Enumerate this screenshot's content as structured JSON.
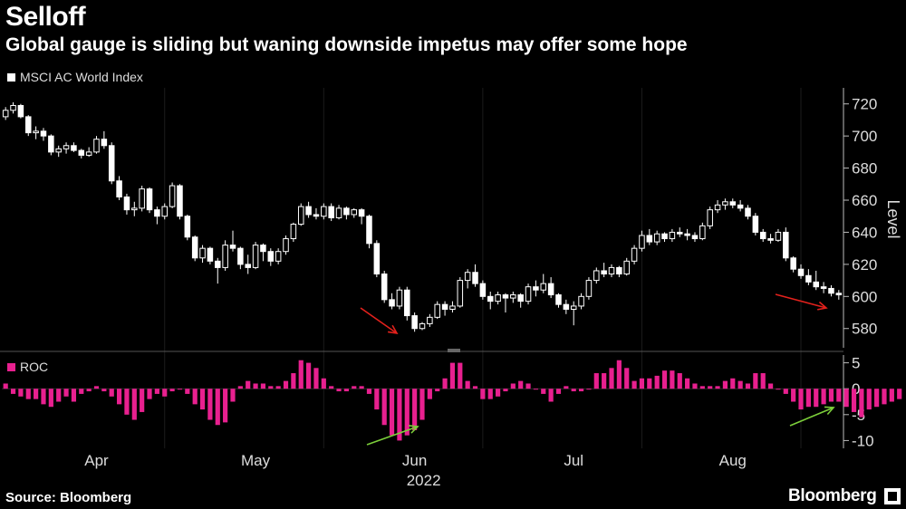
{
  "title": "Selloff",
  "subtitle": "Global gauge is sliding but waning downside impetus may offer some hope",
  "source": "Source: Bloomberg",
  "brand": "Bloomberg",
  "colors": {
    "up": "#ffffff",
    "down": "#ffffff",
    "roc": "#e8208f",
    "arrow_red": "#e3211c",
    "arrow_green": "#7ccf3a",
    "grid": "#333333"
  },
  "chart_data": [
    {
      "type": "candlestick",
      "legend": "MSCI AC World Index",
      "ylabel": "Level",
      "ylim": [
        568,
        730
      ],
      "yticks": [
        580,
        600,
        620,
        640,
        660,
        680,
        700,
        720
      ],
      "x_month_labels": [
        "Apr",
        "May",
        "Jun",
        "Jul",
        "Aug"
      ],
      "x_month_indices": [
        12,
        33,
        54,
        75,
        96
      ],
      "x_year_label": "2022",
      "candles": [
        {
          "o": 712,
          "h": 718,
          "l": 710,
          "c": 716
        },
        {
          "o": 716,
          "h": 721,
          "l": 714,
          "c": 719
        },
        {
          "o": 719,
          "h": 720,
          "l": 711,
          "c": 712
        },
        {
          "o": 712,
          "h": 713,
          "l": 700,
          "c": 702
        },
        {
          "o": 702,
          "h": 706,
          "l": 698,
          "c": 703
        },
        {
          "o": 703,
          "h": 705,
          "l": 697,
          "c": 700
        },
        {
          "o": 700,
          "h": 701,
          "l": 688,
          "c": 690
        },
        {
          "o": 690,
          "h": 694,
          "l": 687,
          "c": 692
        },
        {
          "o": 692,
          "h": 696,
          "l": 689,
          "c": 694
        },
        {
          "o": 694,
          "h": 696,
          "l": 690,
          "c": 691
        },
        {
          "o": 691,
          "h": 692,
          "l": 686,
          "c": 688
        },
        {
          "o": 688,
          "h": 693,
          "l": 687,
          "c": 690
        },
        {
          "o": 690,
          "h": 700,
          "l": 689,
          "c": 698
        },
        {
          "o": 698,
          "h": 703,
          "l": 692,
          "c": 694
        },
        {
          "o": 694,
          "h": 696,
          "l": 670,
          "c": 672
        },
        {
          "o": 672,
          "h": 675,
          "l": 660,
          "c": 662
        },
        {
          "o": 662,
          "h": 664,
          "l": 651,
          "c": 654
        },
        {
          "o": 654,
          "h": 659,
          "l": 650,
          "c": 655
        },
        {
          "o": 655,
          "h": 669,
          "l": 653,
          "c": 667
        },
        {
          "o": 667,
          "h": 668,
          "l": 652,
          "c": 654
        },
        {
          "o": 654,
          "h": 656,
          "l": 645,
          "c": 650
        },
        {
          "o": 650,
          "h": 658,
          "l": 648,
          "c": 656
        },
        {
          "o": 656,
          "h": 671,
          "l": 655,
          "c": 669
        },
        {
          "o": 669,
          "h": 670,
          "l": 648,
          "c": 650
        },
        {
          "o": 650,
          "h": 651,
          "l": 635,
          "c": 637
        },
        {
          "o": 637,
          "h": 638,
          "l": 622,
          "c": 624
        },
        {
          "o": 624,
          "h": 632,
          "l": 621,
          "c": 630
        },
        {
          "o": 630,
          "h": 631,
          "l": 620,
          "c": 622
        },
        {
          "o": 622,
          "h": 624,
          "l": 608,
          "c": 618
        },
        {
          "o": 618,
          "h": 635,
          "l": 616,
          "c": 632
        },
        {
          "o": 632,
          "h": 641,
          "l": 628,
          "c": 630
        },
        {
          "o": 630,
          "h": 631,
          "l": 617,
          "c": 620
        },
        {
          "o": 620,
          "h": 626,
          "l": 614,
          "c": 618
        },
        {
          "o": 618,
          "h": 634,
          "l": 617,
          "c": 632
        },
        {
          "o": 632,
          "h": 633,
          "l": 622,
          "c": 628
        },
        {
          "o": 628,
          "h": 630,
          "l": 619,
          "c": 622
        },
        {
          "o": 622,
          "h": 630,
          "l": 620,
          "c": 628
        },
        {
          "o": 628,
          "h": 638,
          "l": 626,
          "c": 636
        },
        {
          "o": 636,
          "h": 646,
          "l": 634,
          "c": 645
        },
        {
          "o": 645,
          "h": 658,
          "l": 644,
          "c": 656
        },
        {
          "o": 656,
          "h": 659,
          "l": 649,
          "c": 651
        },
        {
          "o": 651,
          "h": 655,
          "l": 648,
          "c": 650
        },
        {
          "o": 650,
          "h": 658,
          "l": 648,
          "c": 656
        },
        {
          "o": 656,
          "h": 658,
          "l": 647,
          "c": 649
        },
        {
          "o": 649,
          "h": 657,
          "l": 648,
          "c": 655
        },
        {
          "o": 655,
          "h": 656,
          "l": 648,
          "c": 651
        },
        {
          "o": 651,
          "h": 655,
          "l": 649,
          "c": 654
        },
        {
          "o": 654,
          "h": 655,
          "l": 645,
          "c": 650
        },
        {
          "o": 650,
          "h": 651,
          "l": 630,
          "c": 633
        },
        {
          "o": 633,
          "h": 635,
          "l": 612,
          "c": 614
        },
        {
          "o": 614,
          "h": 616,
          "l": 596,
          "c": 598
        },
        {
          "o": 598,
          "h": 602,
          "l": 592,
          "c": 594
        },
        {
          "o": 594,
          "h": 606,
          "l": 592,
          "c": 604
        },
        {
          "o": 604,
          "h": 606,
          "l": 585,
          "c": 588
        },
        {
          "o": 588,
          "h": 590,
          "l": 578,
          "c": 580
        },
        {
          "o": 580,
          "h": 584,
          "l": 579,
          "c": 583
        },
        {
          "o": 583,
          "h": 589,
          "l": 581,
          "c": 587
        },
        {
          "o": 587,
          "h": 597,
          "l": 586,
          "c": 595
        },
        {
          "o": 595,
          "h": 597,
          "l": 588,
          "c": 592
        },
        {
          "o": 592,
          "h": 597,
          "l": 590,
          "c": 594
        },
        {
          "o": 594,
          "h": 612,
          "l": 593,
          "c": 610
        },
        {
          "o": 610,
          "h": 617,
          "l": 605,
          "c": 615
        },
        {
          "o": 615,
          "h": 620,
          "l": 606,
          "c": 608
        },
        {
          "o": 608,
          "h": 610,
          "l": 598,
          "c": 600
        },
        {
          "o": 600,
          "h": 603,
          "l": 592,
          "c": 597
        },
        {
          "o": 597,
          "h": 603,
          "l": 595,
          "c": 601
        },
        {
          "o": 601,
          "h": 602,
          "l": 590,
          "c": 599
        },
        {
          "o": 599,
          "h": 603,
          "l": 596,
          "c": 601
        },
        {
          "o": 601,
          "h": 602,
          "l": 593,
          "c": 597
        },
        {
          "o": 597,
          "h": 608,
          "l": 595,
          "c": 606
        },
        {
          "o": 606,
          "h": 610,
          "l": 600,
          "c": 604
        },
        {
          "o": 604,
          "h": 614,
          "l": 602,
          "c": 608
        },
        {
          "o": 608,
          "h": 612,
          "l": 599,
          "c": 601
        },
        {
          "o": 601,
          "h": 602,
          "l": 593,
          "c": 595
        },
        {
          "o": 595,
          "h": 598,
          "l": 589,
          "c": 592
        },
        {
          "o": 592,
          "h": 597,
          "l": 582,
          "c": 594
        },
        {
          "o": 594,
          "h": 602,
          "l": 592,
          "c": 600
        },
        {
          "o": 600,
          "h": 612,
          "l": 598,
          "c": 610
        },
        {
          "o": 610,
          "h": 618,
          "l": 608,
          "c": 616
        },
        {
          "o": 616,
          "h": 621,
          "l": 612,
          "c": 614
        },
        {
          "o": 614,
          "h": 620,
          "l": 612,
          "c": 618
        },
        {
          "o": 618,
          "h": 619,
          "l": 612,
          "c": 614
        },
        {
          "o": 614,
          "h": 624,
          "l": 613,
          "c": 622
        },
        {
          "o": 622,
          "h": 632,
          "l": 620,
          "c": 630
        },
        {
          "o": 630,
          "h": 641,
          "l": 628,
          "c": 638
        },
        {
          "o": 638,
          "h": 642,
          "l": 632,
          "c": 634
        },
        {
          "o": 634,
          "h": 641,
          "l": 632,
          "c": 639
        },
        {
          "o": 639,
          "h": 640,
          "l": 634,
          "c": 636
        },
        {
          "o": 636,
          "h": 642,
          "l": 634,
          "c": 640
        },
        {
          "o": 640,
          "h": 643,
          "l": 637,
          "c": 639
        },
        {
          "o": 639,
          "h": 642,
          "l": 635,
          "c": 638
        },
        {
          "o": 638,
          "h": 640,
          "l": 634,
          "c": 636
        },
        {
          "o": 636,
          "h": 646,
          "l": 635,
          "c": 644
        },
        {
          "o": 644,
          "h": 656,
          "l": 642,
          "c": 654
        },
        {
          "o": 654,
          "h": 660,
          "l": 652,
          "c": 657
        },
        {
          "o": 657,
          "h": 661,
          "l": 654,
          "c": 659
        },
        {
          "o": 659,
          "h": 661,
          "l": 655,
          "c": 657
        },
        {
          "o": 657,
          "h": 660,
          "l": 653,
          "c": 655
        },
        {
          "o": 655,
          "h": 657,
          "l": 648,
          "c": 650
        },
        {
          "o": 650,
          "h": 652,
          "l": 638,
          "c": 640
        },
        {
          "o": 640,
          "h": 642,
          "l": 634,
          "c": 636
        },
        {
          "o": 636,
          "h": 639,
          "l": 633,
          "c": 635
        },
        {
          "o": 635,
          "h": 642,
          "l": 634,
          "c": 640
        },
        {
          "o": 640,
          "h": 643,
          "l": 622,
          "c": 624
        },
        {
          "o": 624,
          "h": 625,
          "l": 615,
          "c": 617
        },
        {
          "o": 617,
          "h": 620,
          "l": 611,
          "c": 613
        },
        {
          "o": 613,
          "h": 617,
          "l": 607,
          "c": 609
        },
        {
          "o": 609,
          "h": 616,
          "l": 604,
          "c": 606
        },
        {
          "o": 606,
          "h": 609,
          "l": 602,
          "c": 605
        },
        {
          "o": 605,
          "h": 607,
          "l": 600,
          "c": 602
        },
        {
          "o": 602,
          "h": 604,
          "l": 598,
          "c": 601
        }
      ]
    },
    {
      "type": "bar",
      "legend": "ROC",
      "ylim": [
        -11.5,
        6.5
      ],
      "yticks": [
        5,
        0,
        -5,
        -10
      ],
      "values": [
        1,
        -1,
        -1.5,
        -2,
        -2,
        -3,
        -3.5,
        -2.5,
        -1.5,
        -2.5,
        -1,
        -0.5,
        0.5,
        -0.5,
        -1.5,
        -3,
        -5,
        -6,
        -4.5,
        -2,
        -1,
        -1.5,
        -0.5,
        0,
        -1,
        -3,
        -4,
        -6,
        -7,
        -6.5,
        -2.5,
        0.5,
        1.5,
        1,
        1,
        0.5,
        0.5,
        1.5,
        3,
        5.5,
        5,
        4,
        2,
        0.5,
        -0.5,
        -0.5,
        0.5,
        0.5,
        -1,
        -4,
        -7,
        -9,
        -10,
        -9,
        -8,
        -6,
        -2,
        -0.5,
        2,
        5,
        5,
        1.5,
        0.5,
        -2,
        -2,
        -1.5,
        -0.5,
        1,
        1.5,
        1,
        0,
        -1,
        -2.5,
        -1,
        0.5,
        -0.5,
        -0.5,
        0,
        3,
        3,
        4,
        5.5,
        4,
        1.5,
        2,
        2,
        2.5,
        3.5,
        3.5,
        3,
        2,
        1,
        0.5,
        0.5,
        0.5,
        1.5,
        2,
        1.5,
        1,
        3,
        3,
        1,
        0,
        -1,
        -2.5,
        -4,
        -3.5,
        -3.5,
        -3,
        -2.5,
        -2.5,
        -3.5,
        -4.5,
        -5.5,
        -4,
        -3.5,
        -3,
        -2.5,
        -2
      ]
    }
  ]
}
